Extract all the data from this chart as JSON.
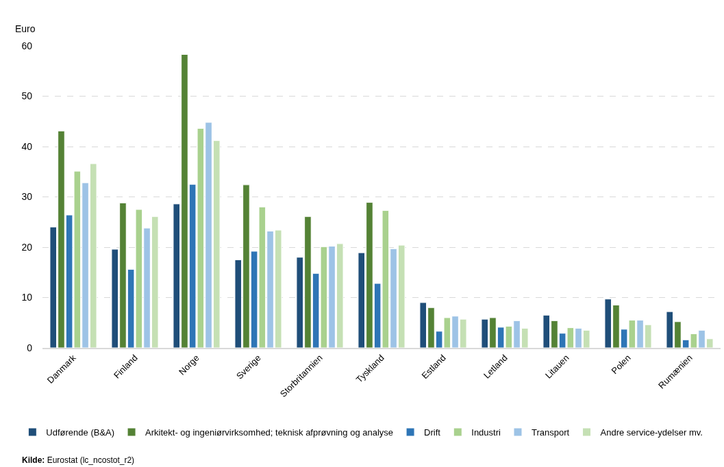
{
  "chart_data": {
    "type": "bar",
    "ylabel": "Euro",
    "categories": [
      "Danmark",
      "Finland",
      "Norge",
      "Sverige",
      "Storbritannien",
      "Tyskland",
      "Estland",
      "Letland",
      "Litauen",
      "Polen",
      "Rumænien"
    ],
    "series": [
      {
        "name": "Udførende (B&A)",
        "color": "#1f4e79",
        "values": [
          24.0,
          19.6,
          28.6,
          17.5,
          18.0,
          18.9,
          9.0,
          5.7,
          6.5,
          9.7,
          7.2
        ]
      },
      {
        "name": "Arkitekt- og ingeniørvirksomhed; teknisk afprøvning og analyse",
        "color": "#548235",
        "values": [
          43.1,
          28.8,
          58.3,
          32.4,
          26.1,
          28.9,
          8.0,
          6.0,
          5.4,
          8.5,
          5.2
        ]
      },
      {
        "name": "Drift",
        "color": "#2e75b6",
        "values": [
          26.4,
          15.6,
          32.5,
          19.2,
          14.8,
          12.8,
          3.3,
          4.1,
          2.9,
          3.7,
          1.6
        ]
      },
      {
        "name": "Industri",
        "color": "#a9d18e",
        "values": [
          35.1,
          27.5,
          43.6,
          28.0,
          20.1,
          27.3,
          6.0,
          4.3,
          4.0,
          5.5,
          2.8
        ]
      },
      {
        "name": "Transport",
        "color": "#9dc3e6",
        "values": [
          32.8,
          23.8,
          44.8,
          23.2,
          20.2,
          19.7,
          6.3,
          5.4,
          3.9,
          5.5,
          3.5
        ]
      },
      {
        "name": "Andre service-ydelser mv.",
        "color": "#c5e0b4",
        "values": [
          36.6,
          26.1,
          41.2,
          23.4,
          20.7,
          20.4,
          5.7,
          3.9,
          3.5,
          4.6,
          1.8
        ]
      }
    ],
    "ylim": [
      0,
      60
    ],
    "yticks": [
      0,
      10,
      20,
      30,
      40,
      50,
      60
    ],
    "grid": "y",
    "legend": "bottom",
    "annotations": [
      "Kilde: Eurostat (lc_ncostot_r2)"
    ]
  }
}
